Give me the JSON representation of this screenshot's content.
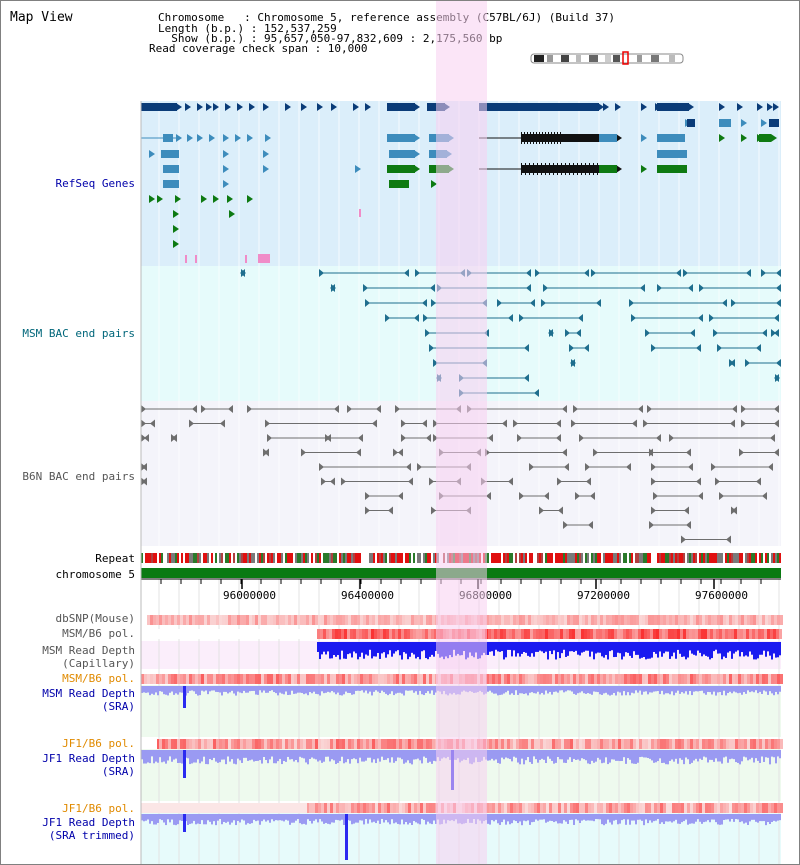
{
  "header": {
    "view_title": "Map View",
    "chromosome_line": "Chromosome   : Chromosome 5, reference assembly (C57BL/6J) (Build 37)",
    "length_line": "Length (b.p.) : 152,537,259",
    "show_line": "  Show (b.p.) : 95,657,050-97,832,609 : 2,175,560 bp",
    "coverage_line": "Read coverage check span : 10,000"
  },
  "tracks": {
    "refseq": "RefSeq Genes",
    "msm_bac": "MSM BAC end pairs",
    "b6n_bac": "B6N BAC end pairs",
    "repeat": "Repeat",
    "chromosome": "chromosome 5",
    "dbsnp": "dbSNP(Mouse)",
    "msm_b6_pol_1": "MSM/B6 pol.",
    "msm_depth_cap_1": "MSM Read Depth",
    "msm_depth_cap_2": "(Capillary)",
    "msm_b6_pol_2": "MSM/B6 pol.",
    "msm_depth_sra_1": "MSM Read Depth",
    "msm_depth_sra_2": "(SRA)",
    "jf1_b6_pol_1": "JF1/B6 pol.",
    "jf1_depth_sra_1": "JF1 Read Depth",
    "jf1_depth_sra_2": "(SRA)",
    "jf1_b6_pol_2": "JF1/B6 pol.",
    "jf1_depth_trim_1": "JF1 Read Depth",
    "jf1_depth_trim_2": "(SRA trimmed)"
  },
  "scale_ticks": [
    "96000000",
    "96400000",
    "96800000",
    "97200000",
    "97600000"
  ],
  "colors": {
    "refseq_bg": "#dbeefa",
    "msm_bac_bg": "#e6fbfb",
    "b6n_bac_bg": "#f4f4fa",
    "highlight": "#f7d0f0",
    "gene_dark": "#0b3c78",
    "gene_mid": "#3d8cbc",
    "gene_green": "#0e7a12",
    "msm_bac_line": "#1f6e8e",
    "b6n_bac_line": "#6e6e6e",
    "chromosome_bar": "#0a7a12",
    "label_blue": "#0000aa",
    "label_teal": "#00667a",
    "label_gray": "#555555",
    "label_orange": "#e08a00",
    "depth_blue": "#2a2af0",
    "depth_light": "#9a9af2"
  }
}
